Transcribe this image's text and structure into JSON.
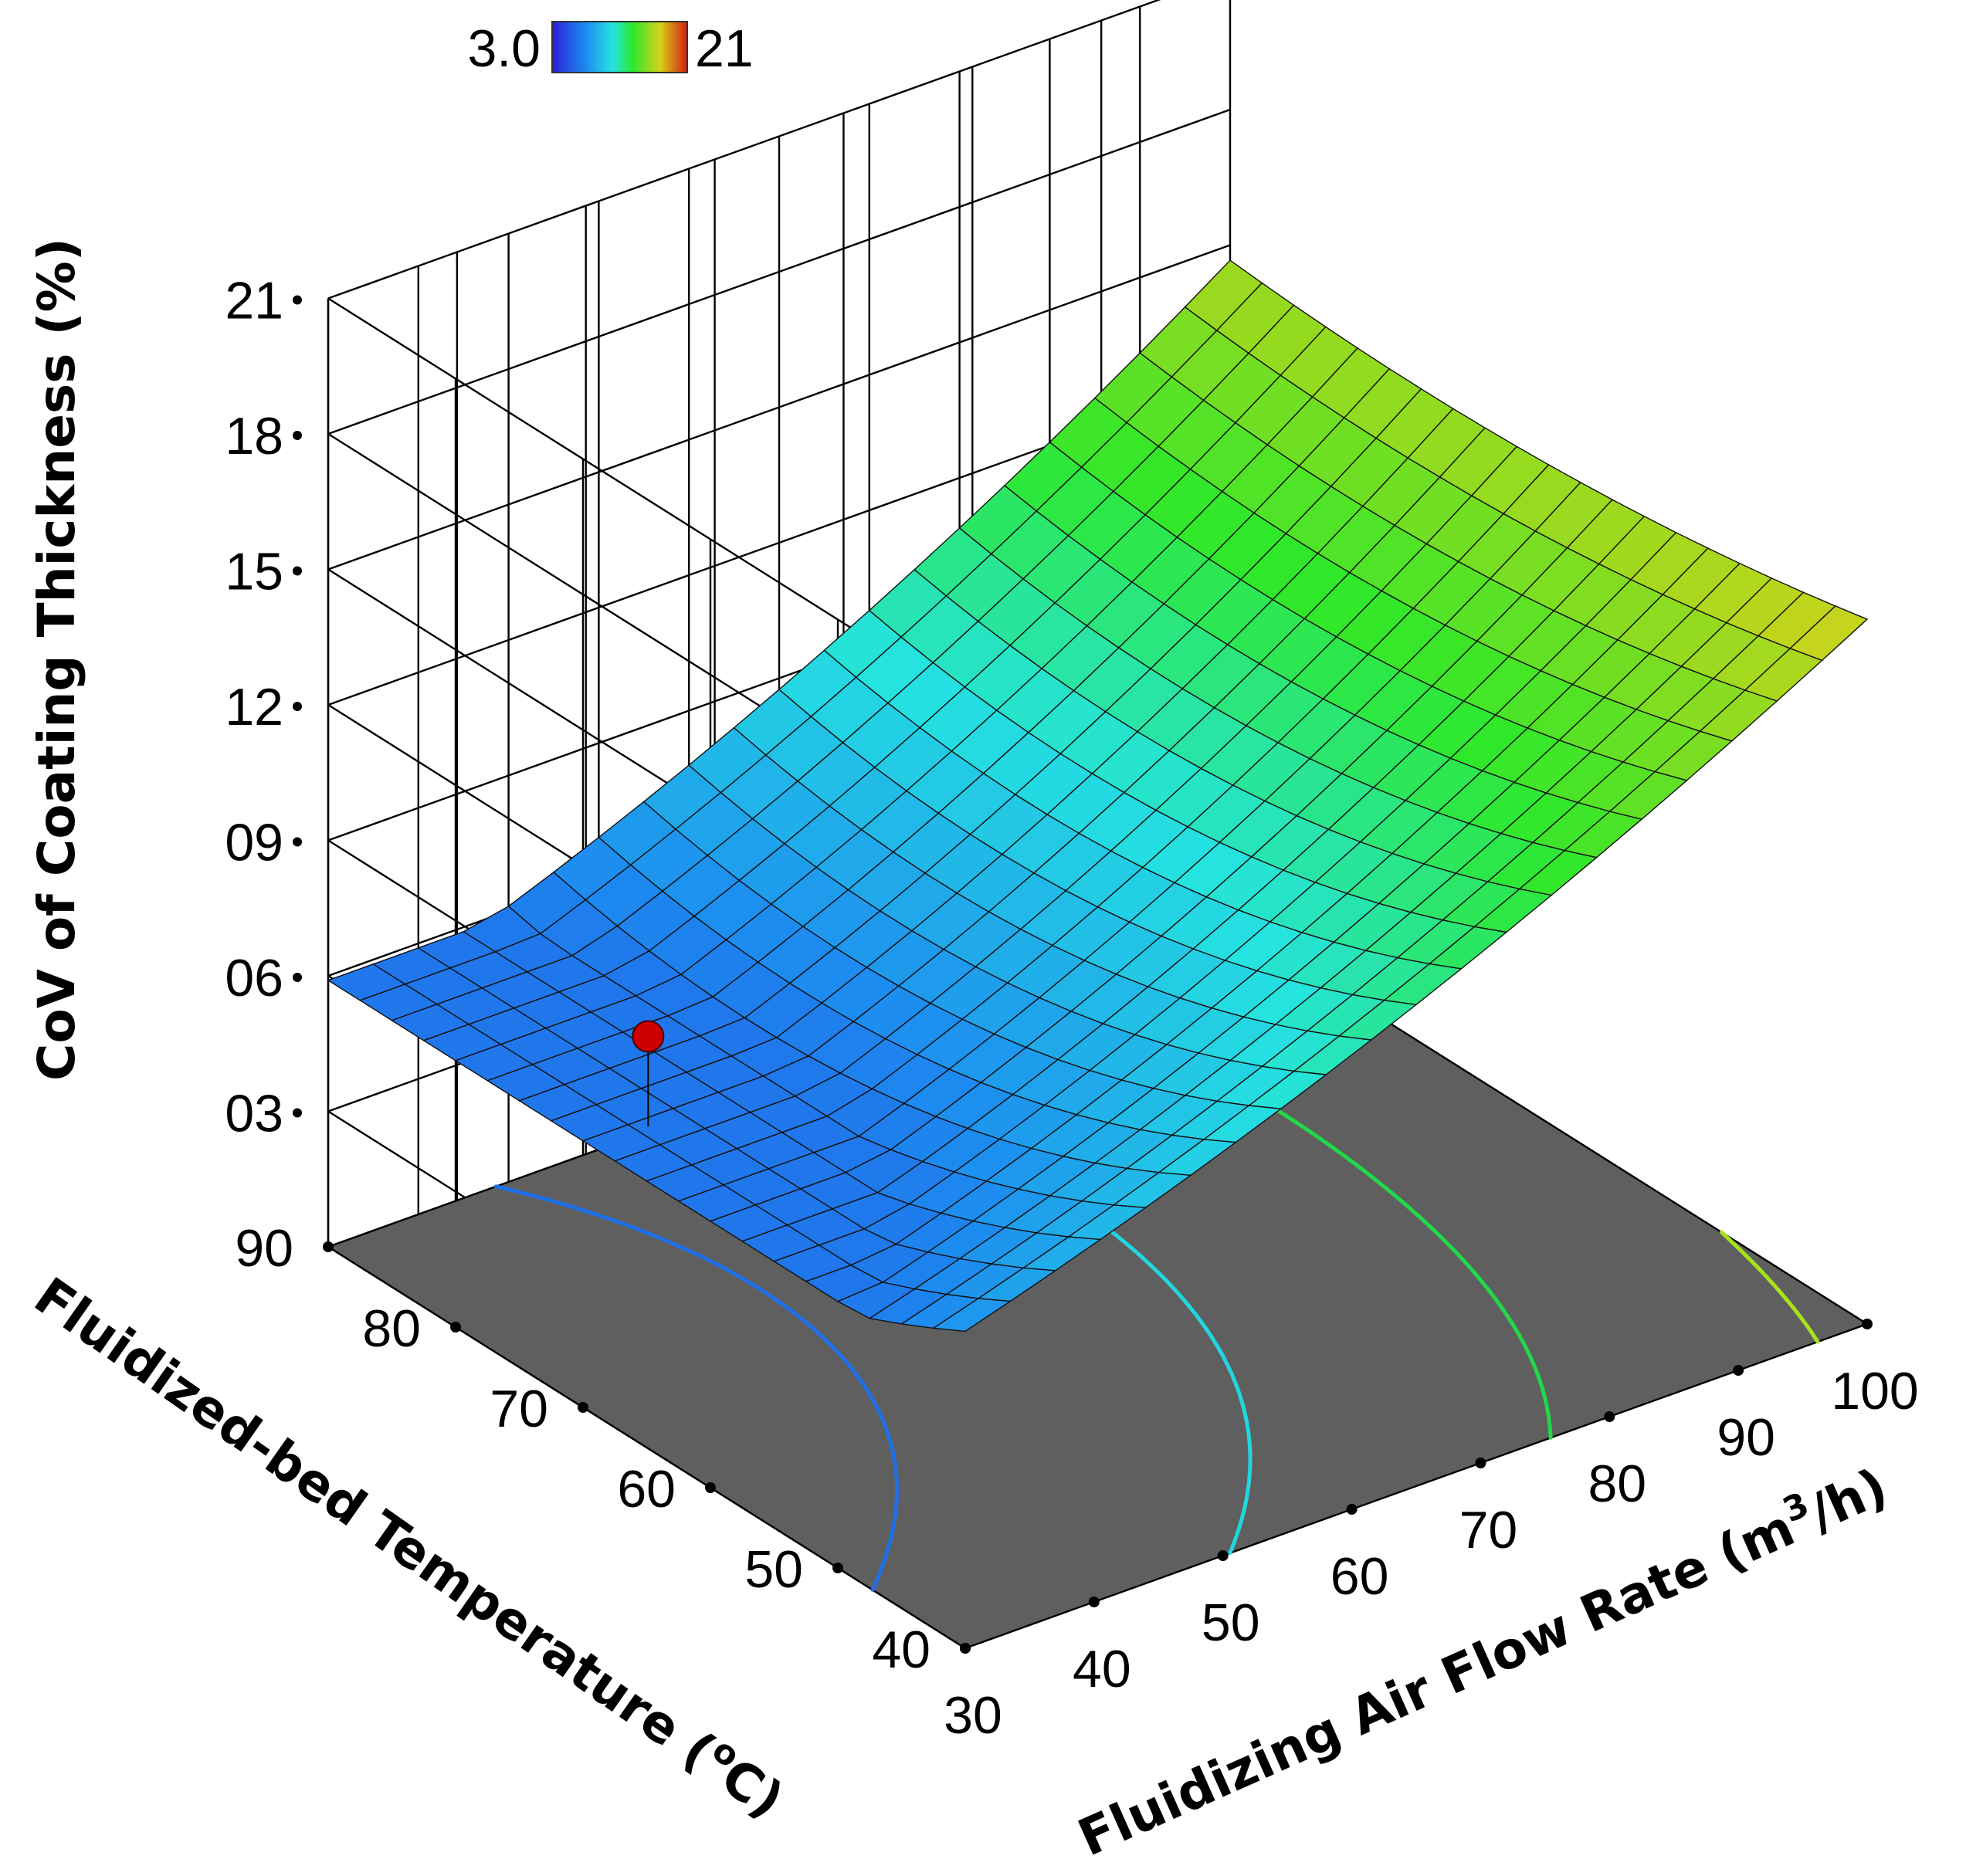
{
  "chart_data": {
    "type": "surface3d",
    "x_axis": {
      "label": "Fluidizing Air Flow Rate (m",
      "label_sup": "3",
      "label_end": "/h)",
      "range": [
        30,
        100
      ],
      "ticks": [
        "30",
        "40",
        "50",
        "60",
        "70",
        "80",
        "90",
        "100"
      ]
    },
    "y_axis": {
      "label": "Fluidized-bed Temperature (",
      "label_sup": "o",
      "label_end": "C)",
      "range": [
        40,
        90
      ],
      "ticks": [
        "40",
        "50",
        "60",
        "70",
        "80",
        "90"
      ]
    },
    "z_axis": {
      "label": "CoV of Coating Thickness (%)",
      "range": [
        0,
        21
      ],
      "ticks": [
        "03",
        "06",
        "09",
        "12",
        "15",
        "18",
        "21"
      ],
      "tick_values": [
        3,
        6,
        9,
        12,
        15,
        18,
        21
      ]
    },
    "colorbar": {
      "min_label": "3.0",
      "max_label": "21",
      "min": 3.0,
      "max": 21
    },
    "surface_corners": {
      "x30_y40": 9.5,
      "x30_y90": 8.3,
      "x100_y40": 16.6,
      "x100_y90": 16.1
    },
    "minimum_point": {
      "x": 45,
      "y": 70,
      "z": 5.9
    },
    "contour_levels": [
      6,
      9,
      12,
      15,
      18
    ],
    "design_point": {
      "x": 40,
      "y": 75,
      "z": 5.7,
      "color": "#cc0000"
    }
  },
  "colors": {
    "floor": "#5f5f5f",
    "grid": "#000000",
    "point": "#cc0000"
  }
}
